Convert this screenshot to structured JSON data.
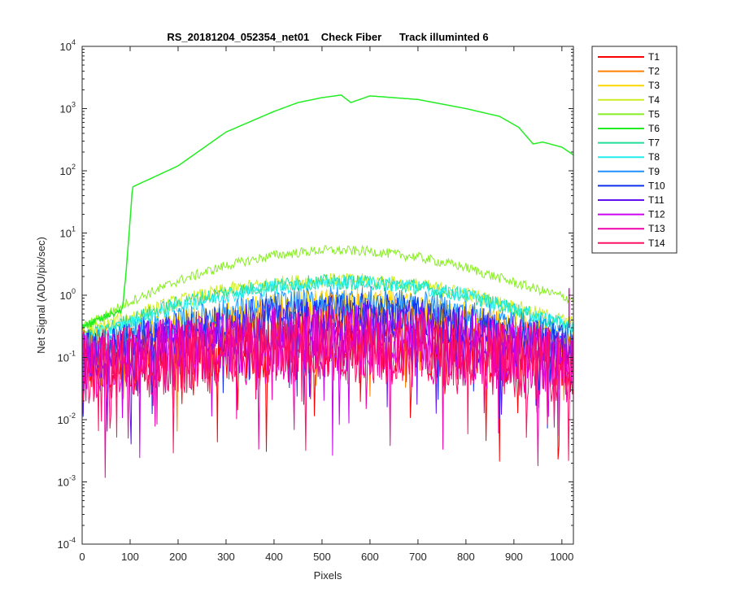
{
  "chart_data": {
    "type": "line",
    "title": "RS_20181204_052354_net01    Check Fiber      Track illuminted 6",
    "xlabel": "Pixels",
    "ylabel": "Net Signal (ADU/pix/sec)",
    "xlim": [
      0,
      1024
    ],
    "ylim": [
      0.0001,
      10000
    ],
    "yscale": "log",
    "grid": false,
    "legend_position": "outside-top-right",
    "x_ticks": [
      0,
      100,
      200,
      300,
      400,
      500,
      600,
      700,
      800,
      900,
      1000
    ],
    "y_ticks": [
      {
        "base": "10",
        "exp": "-4",
        "value": 0.0001
      },
      {
        "base": "10",
        "exp": "-3",
        "value": 0.001
      },
      {
        "base": "10",
        "exp": "-2",
        "value": 0.01
      },
      {
        "base": "10",
        "exp": "-1",
        "value": 0.1
      },
      {
        "base": "10",
        "exp": "0",
        "value": 1
      },
      {
        "base": "10",
        "exp": "1",
        "value": 10
      },
      {
        "base": "10",
        "exp": "2",
        "value": 100
      },
      {
        "base": "10",
        "exp": "3",
        "value": 1000
      },
      {
        "base": "10",
        "exp": "4",
        "value": 10000
      }
    ],
    "series": [
      {
        "name": "T1",
        "color": "#ff0000",
        "x": [
          0,
          100,
          200,
          300,
          400,
          500,
          600,
          700,
          800,
          900,
          1024
        ],
        "values": [
          0.08,
          0.09,
          0.11,
          0.13,
          0.15,
          0.16,
          0.16,
          0.15,
          0.13,
          0.11,
          0.08
        ]
      },
      {
        "name": "T2",
        "color": "#ff7f00",
        "x": [
          0,
          100,
          200,
          300,
          400,
          500,
          600,
          700,
          800,
          900,
          1024
        ],
        "values": [
          0.12,
          0.15,
          0.22,
          0.32,
          0.42,
          0.5,
          0.5,
          0.42,
          0.32,
          0.22,
          0.13
        ]
      },
      {
        "name": "T3",
        "color": "#ffd700",
        "x": [
          0,
          100,
          200,
          300,
          400,
          500,
          600,
          700,
          800,
          900,
          1024
        ],
        "values": [
          0.15,
          0.2,
          0.3,
          0.42,
          0.55,
          0.65,
          0.65,
          0.55,
          0.42,
          0.3,
          0.18
        ]
      },
      {
        "name": "T4",
        "color": "#ccee22",
        "x": [
          0,
          100,
          200,
          300,
          400,
          500,
          600,
          700,
          800,
          900,
          1024
        ],
        "values": [
          0.25,
          0.45,
          0.8,
          1.2,
          1.55,
          1.75,
          1.7,
          1.45,
          1.05,
          0.65,
          0.35
        ]
      },
      {
        "name": "T5",
        "color": "#88ee22",
        "x": [
          0,
          100,
          200,
          300,
          400,
          500,
          600,
          700,
          800,
          900,
          1024
        ],
        "values": [
          0.3,
          0.8,
          1.7,
          3.0,
          4.4,
          5.3,
          5.1,
          4.1,
          2.8,
          1.6,
          0.85
        ]
      },
      {
        "name": "T6",
        "color": "#22ee22",
        "x": [
          0,
          85,
          95,
          105,
          200,
          300,
          400,
          450,
          500,
          540,
          560,
          600,
          700,
          800,
          870,
          910,
          940,
          960,
          1000,
          1024
        ],
        "values": [
          0.3,
          0.6,
          5,
          55,
          120,
          420,
          900,
          1250,
          1500,
          1650,
          1250,
          1600,
          1400,
          1000,
          750,
          500,
          270,
          290,
          240,
          180
        ]
      },
      {
        "name": "T7",
        "color": "#22dd99",
        "x": [
          0,
          100,
          200,
          300,
          400,
          500,
          600,
          700,
          800,
          900,
          1024
        ],
        "values": [
          0.2,
          0.4,
          0.75,
          1.1,
          1.45,
          1.65,
          1.6,
          1.35,
          1.0,
          0.6,
          0.3
        ]
      },
      {
        "name": "T8",
        "color": "#22eeee",
        "x": [
          0,
          100,
          200,
          300,
          400,
          500,
          600,
          700,
          800,
          900,
          1024
        ],
        "values": [
          0.2,
          0.35,
          0.65,
          1.0,
          1.35,
          1.6,
          1.6,
          1.35,
          1.0,
          0.6,
          0.3
        ]
      },
      {
        "name": "T9",
        "color": "#1e90ff",
        "x": [
          0,
          100,
          200,
          300,
          400,
          500,
          600,
          700,
          800,
          900,
          1024
        ],
        "values": [
          0.15,
          0.22,
          0.35,
          0.5,
          0.68,
          0.8,
          0.8,
          0.68,
          0.5,
          0.33,
          0.2
        ]
      },
      {
        "name": "T10",
        "color": "#1030ee",
        "x": [
          0,
          100,
          200,
          300,
          400,
          500,
          600,
          700,
          800,
          900,
          1024
        ],
        "values": [
          0.12,
          0.16,
          0.24,
          0.34,
          0.44,
          0.5,
          0.5,
          0.44,
          0.34,
          0.23,
          0.14
        ]
      },
      {
        "name": "T11",
        "color": "#6010ee",
        "x": [
          0,
          100,
          200,
          300,
          400,
          500,
          600,
          700,
          800,
          900,
          1024
        ],
        "values": [
          0.1,
          0.13,
          0.18,
          0.24,
          0.3,
          0.33,
          0.33,
          0.3,
          0.24,
          0.17,
          0.11
        ]
      },
      {
        "name": "T12",
        "color": "#cc00ee",
        "x": [
          0,
          100,
          200,
          300,
          400,
          500,
          600,
          700,
          800,
          900,
          1024
        ],
        "values": [
          0.08,
          0.1,
          0.13,
          0.16,
          0.19,
          0.21,
          0.21,
          0.19,
          0.16,
          0.12,
          0.08
        ]
      },
      {
        "name": "T13",
        "color": "#ee00aa",
        "x": [
          0,
          100,
          200,
          300,
          400,
          500,
          600,
          700,
          800,
          900,
          1024
        ],
        "values": [
          0.07,
          0.09,
          0.11,
          0.13,
          0.15,
          0.17,
          0.17,
          0.15,
          0.13,
          0.1,
          0.07
        ]
      },
      {
        "name": "T14",
        "color": "#ff1166",
        "x": [
          0,
          100,
          200,
          300,
          400,
          500,
          600,
          700,
          800,
          900,
          1024
        ],
        "values": [
          0.07,
          0.08,
          0.1,
          0.12,
          0.14,
          0.15,
          0.15,
          0.14,
          0.12,
          0.09,
          0.07
        ]
      }
    ],
    "outlier": {
      "series": "T13",
      "x": 1015,
      "y_low": 0.3,
      "y_high": 1.3
    }
  }
}
